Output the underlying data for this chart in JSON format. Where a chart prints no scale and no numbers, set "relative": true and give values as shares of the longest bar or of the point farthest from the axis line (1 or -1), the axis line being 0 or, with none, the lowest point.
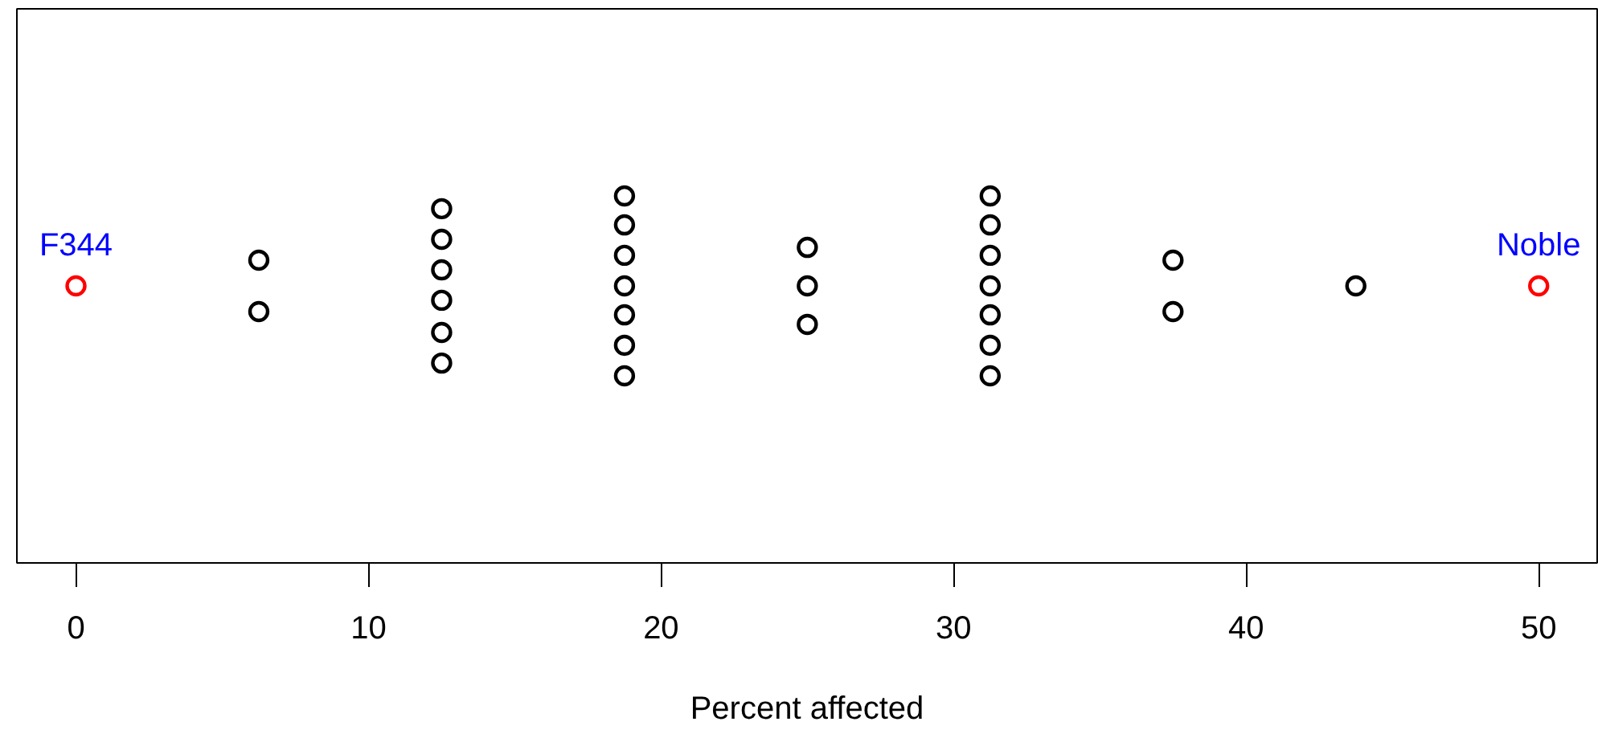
{
  "chart_data": {
    "type": "scatter",
    "xlabel": "Percent affected",
    "relative": true,
    "marker": "circle",
    "grid": false,
    "tick_labels": "x",
    "xlim": [
      -2.02,
      52.0
    ],
    "xticks": [
      0,
      10,
      20,
      30,
      40,
      50
    ],
    "series": [
      {
        "color": "#000000",
        "x": [
          6.25,
          6.25,
          12.5,
          12.5,
          12.5,
          12.5,
          12.5,
          12.5,
          18.75,
          18.75,
          18.75,
          18.75,
          18.75,
          18.75,
          18.75,
          25,
          25,
          25,
          31.25,
          31.25,
          31.25,
          31.25,
          31.25,
          31.25,
          31.25,
          37.5,
          37.5,
          43.75
        ],
        "values": [
          0.643,
          0.357,
          0.929,
          0.759,
          0.589,
          0.42,
          0.241,
          0.071,
          1,
          0.839,
          0.67,
          0.5,
          0.339,
          0.17,
          0,
          0.714,
          0.5,
          0.286,
          1,
          0.839,
          0.67,
          0.5,
          0.339,
          0.17,
          0,
          0.643,
          0.357,
          0.5
        ]
      },
      {
        "color": "#ff0000",
        "x": [
          0,
          50
        ],
        "values": [
          0.5,
          0.5
        ]
      }
    ],
    "annotations": [
      "F344",
      "Noble"
    ]
  }
}
